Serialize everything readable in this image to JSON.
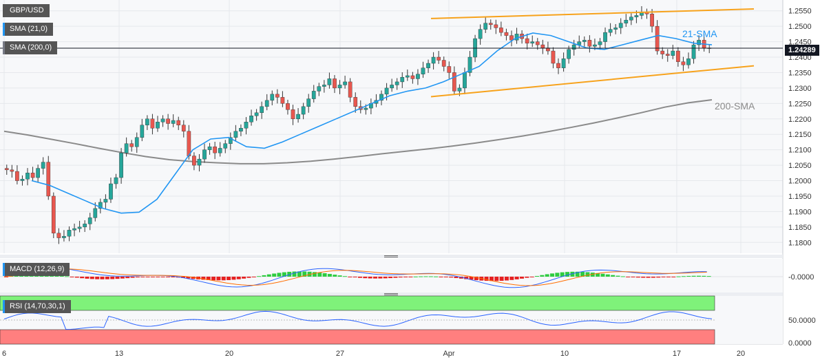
{
  "chart_data": {
    "type": "candlestick",
    "symbol": "GBP/USD",
    "current_price": "1.24289",
    "overlays": [
      {
        "name": "SMA (21,0)",
        "color": "#2196f3"
      },
      {
        "name": "SMA (200,0)",
        "color": "#787b86"
      }
    ],
    "annotations": {
      "sma21": "21-SMA",
      "sma200": "200-SMA"
    },
    "price_axis": {
      "ticks": [
        "1.2550",
        "1.2500",
        "1.2450",
        "1.2400",
        "1.2350",
        "1.2300",
        "1.2250",
        "1.2200",
        "1.2150",
        "1.2100",
        "1.2050",
        "1.2000",
        "1.1950",
        "1.1900",
        "1.1850",
        "1.1800"
      ],
      "ylim": [
        1.1765,
        1.2585
      ]
    },
    "time_axis": {
      "ticks": [
        "6",
        "13",
        "20",
        "27",
        "Apr",
        "10",
        "17",
        "20"
      ]
    },
    "channel": {
      "upper": [
        {
          "x": 0.0,
          "y": 1.2525
        },
        {
          "x": 1.0,
          "y": 1.2556
        }
      ],
      "lower": [
        {
          "x": 0.0,
          "y": 1.2272
        },
        {
          "x": 1.0,
          "y": 1.2372
        }
      ]
    },
    "sma200": [
      1.216,
      1.2148,
      1.2134,
      1.212,
      1.2105,
      1.2091,
      1.2078,
      1.2068,
      1.2062,
      1.2058,
      1.2055,
      1.2055,
      1.2058,
      1.2063,
      1.207,
      1.2078,
      1.2087,
      1.2095,
      1.2103,
      1.2112,
      1.2122,
      1.2133,
      1.2145,
      1.2158,
      1.2172,
      1.2187,
      1.2203,
      1.222,
      1.2238,
      1.2252,
      1.2262
    ],
    "candles": {
      "start": 1.204,
      "closes": [
        1.2035,
        1.203,
        1.2,
        1.2005,
        1.2025,
        1.201,
        1.204,
        1.206,
        1.195,
        1.183,
        1.1815,
        1.182,
        1.184,
        1.1845,
        1.185,
        1.186,
        1.188,
        1.191,
        1.193,
        1.194,
        1.199,
        1.201,
        1.209,
        1.212,
        1.211,
        1.214,
        1.218,
        1.22,
        1.217,
        1.219,
        1.22,
        1.2185,
        1.2195,
        1.218,
        1.216,
        1.208,
        1.205,
        1.207,
        1.21,
        1.211,
        1.209,
        1.2105,
        1.212,
        1.214,
        1.216,
        1.217,
        1.219,
        1.221,
        1.222,
        1.224,
        1.226,
        1.228,
        1.227,
        1.225,
        1.223,
        1.22,
        1.2215,
        1.224,
        1.2265,
        1.229,
        1.2305,
        1.231,
        1.233,
        1.23,
        1.231,
        1.232,
        1.227,
        1.224,
        1.223,
        1.2235,
        1.225,
        1.226,
        1.228,
        1.23,
        1.231,
        1.232,
        1.2335,
        1.234,
        1.233,
        1.2345,
        1.2365,
        1.238,
        1.24,
        1.239,
        1.237,
        1.235,
        1.229,
        1.23,
        1.235,
        1.24,
        1.246,
        1.249,
        1.251,
        1.2505,
        1.2495,
        1.248,
        1.247,
        1.2455,
        1.2475,
        1.246,
        1.2445,
        1.245,
        1.244,
        1.243,
        1.242,
        1.238,
        1.2365,
        1.2395,
        1.2425,
        1.244,
        1.245,
        1.2455,
        1.2435,
        1.244,
        1.245,
        1.248,
        1.249,
        1.2495,
        1.251,
        1.252,
        1.253,
        1.2535,
        1.2545,
        1.254,
        1.25,
        1.242,
        1.241,
        1.2405,
        1.242,
        1.2385,
        1.2375,
        1.2395,
        1.244,
        1.2455,
        1.243,
        1.2429
      ]
    },
    "sma21": [
      1.2,
      1.1985,
      1.196,
      1.1935,
      1.191,
      1.1895,
      1.1898,
      1.194,
      1.202,
      1.21,
      1.2135,
      1.214,
      1.211,
      1.2105,
      1.2125,
      1.215,
      1.2175,
      1.22,
      1.2225,
      1.225,
      1.2275,
      1.229,
      1.23,
      1.232,
      1.2345,
      1.237,
      1.242,
      1.246,
      1.2478,
      1.247,
      1.245,
      1.243,
      1.2425,
      1.244,
      1.2455,
      1.247,
      1.246,
      1.2445,
      1.244
    ],
    "panels": [
      {
        "name": "MACD (12,26,9)",
        "axis_ticks": [
          "-0.0000"
        ]
      },
      {
        "name": "RSI (14,70,30,1)",
        "axis_ticks": [
          "50.0000",
          "0.0000"
        ],
        "overbought": 70,
        "oversold": 30
      }
    ]
  }
}
